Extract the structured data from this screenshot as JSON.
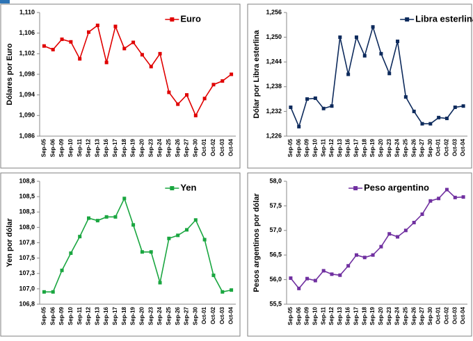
{
  "chart_data": [
    {
      "type": "line",
      "ylabel": "Dólares por Euro",
      "categories": [
        "Sep-05",
        "Sep-06",
        "Sep-09",
        "Sep-10",
        "Sep-11",
        "Sep-12",
        "Sep-13",
        "Sep-16",
        "Sep-17",
        "Sep-18",
        "Sep-19",
        "Sep-20",
        "Sep-23",
        "Sep-24",
        "Sep-25",
        "Sep-26",
        "Sep-27",
        "Sep-30",
        "Oct-01",
        "Oct-02",
        "Oct-03",
        "Oct-04"
      ],
      "series": [
        {
          "name": "Euro",
          "color": "#e00000",
          "values": [
            1.1035,
            1.1028,
            1.1048,
            1.1043,
            1.101,
            1.1062,
            1.1075,
            1.1003,
            1.1073,
            1.103,
            1.1042,
            1.1018,
            1.0995,
            1.102,
            1.0945,
            1.0922,
            1.094,
            1.09,
            1.0933,
            1.096,
            1.0967,
            1.098
          ]
        }
      ],
      "ylim": [
        1.086,
        1.11
      ],
      "yticks": [
        {
          "value": 1.086,
          "label": "1,086"
        },
        {
          "value": 1.09,
          "label": "1,090"
        },
        {
          "value": 1.094,
          "label": "1,094"
        },
        {
          "value": 1.098,
          "label": "1,098"
        },
        {
          "value": 1.102,
          "label": "1,102"
        },
        {
          "value": 1.106,
          "label": "1,106"
        },
        {
          "value": 1.11,
          "label": "1,110"
        }
      ],
      "legend": "upper right"
    },
    {
      "type": "line",
      "ylabel": "Dólar por Libra esterlina",
      "categories": [
        "Sep-05",
        "Sep-06",
        "Sep-09",
        "Sep-10",
        "Sep-11",
        "Sep-12",
        "Sep-13",
        "Sep-16",
        "Sep-17",
        "Sep-18",
        "Sep-19",
        "Sep-20",
        "Sep-23",
        "Sep-24",
        "Sep-25",
        "Sep-26",
        "Sep-27",
        "Sep-30",
        "Oct-01",
        "Oct-02",
        "Oct-03",
        "Oct-04"
      ],
      "series": [
        {
          "name": "Libra esterlina",
          "color": "#0d2a5c",
          "values": [
            1.233,
            1.2283,
            1.235,
            1.2352,
            1.2327,
            1.2333,
            1.25,
            1.241,
            1.25,
            1.2455,
            1.2525,
            1.246,
            1.2412,
            1.249,
            1.2355,
            1.232,
            1.229,
            1.229,
            1.2305,
            1.2303,
            1.233,
            1.2333
          ]
        }
      ],
      "ylim": [
        1.226,
        1.256
      ],
      "yticks": [
        {
          "value": 1.226,
          "label": "1,226"
        },
        {
          "value": 1.232,
          "label": "1,232"
        },
        {
          "value": 1.238,
          "label": "1,238"
        },
        {
          "value": 1.244,
          "label": "1,244"
        },
        {
          "value": 1.25,
          "label": "1,250"
        },
        {
          "value": 1.256,
          "label": "1,256"
        }
      ],
      "legend": "upper right"
    },
    {
      "type": "line",
      "ylabel": "Yen por dólar",
      "categories": [
        "Sep-05",
        "Sep-06",
        "Sep-09",
        "Sep-10",
        "Sep-11",
        "Sep-12",
        "Sep-13",
        "Sep-16",
        "Sep-17",
        "Sep-18",
        "Sep-19",
        "Sep-20",
        "Sep-23",
        "Sep-24",
        "Sep-25",
        "Sep-26",
        "Sep-27",
        "Sep-30",
        "Oct-01",
        "Oct-02",
        "Oct-03",
        "Oct-04"
      ],
      "series": [
        {
          "name": "Yen",
          "color": "#1aa640",
          "values": [
            106.95,
            106.95,
            107.3,
            107.58,
            107.85,
            108.15,
            108.11,
            108.17,
            108.17,
            108.47,
            108.04,
            107.6,
            107.6,
            107.1,
            107.82,
            107.87,
            107.96,
            108.12,
            107.8,
            107.22,
            106.95,
            106.98
          ]
        }
      ],
      "ylim": [
        106.75,
        108.75
      ],
      "yticks": [
        {
          "value": 106.75,
          "label": "106,8"
        },
        {
          "value": 107.0,
          "label": "107,0"
        },
        {
          "value": 107.25,
          "label": "107,3"
        },
        {
          "value": 107.5,
          "label": "107,5"
        },
        {
          "value": 107.75,
          "label": "107,8"
        },
        {
          "value": 108.0,
          "label": "108,0"
        },
        {
          "value": 108.25,
          "label": "108,3"
        },
        {
          "value": 108.5,
          "label": "108,5"
        },
        {
          "value": 108.75,
          "label": "108,8"
        }
      ],
      "legend": "upper right"
    },
    {
      "type": "line",
      "ylabel": "Pesos argentinos por dólar",
      "categories": [
        "Sep-05",
        "Sep-06",
        "Sep-09",
        "Sep-10",
        "Sep-11",
        "Sep-12",
        "Sep-13",
        "Sep-16",
        "Sep-17",
        "Sep-18",
        "Sep-19",
        "Sep-20",
        "Sep-23",
        "Sep-24",
        "Sep-25",
        "Sep-26",
        "Sep-27",
        "Sep-30",
        "Oct-01",
        "Oct-02",
        "Oct-03",
        "Oct-04"
      ],
      "series": [
        {
          "name": "Peso argentino",
          "color": "#7030a0",
          "values": [
            56.03,
            55.82,
            56.02,
            55.98,
            56.18,
            56.11,
            56.09,
            56.28,
            56.5,
            56.45,
            56.5,
            56.67,
            56.93,
            56.87,
            57.0,
            57.16,
            57.33,
            57.6,
            57.65,
            57.83,
            57.67,
            57.68
          ]
        }
      ],
      "ylim": [
        55.5,
        58.0
      ],
      "yticks": [
        {
          "value": 55.5,
          "label": "55,5"
        },
        {
          "value": 56.0,
          "label": "56,0"
        },
        {
          "value": 56.5,
          "label": "56,5"
        },
        {
          "value": 57.0,
          "label": "57,0"
        },
        {
          "value": 57.5,
          "label": "57,5"
        },
        {
          "value": 58.0,
          "label": "58,0"
        }
      ],
      "legend": "upper center"
    }
  ]
}
